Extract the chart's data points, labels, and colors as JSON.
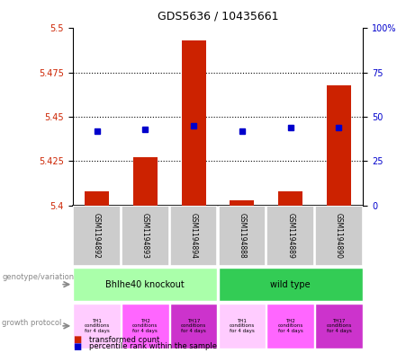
{
  "title": "GDS5636 / 10435661",
  "samples": [
    "GSM1194892",
    "GSM1194893",
    "GSM1194894",
    "GSM1194888",
    "GSM1194889",
    "GSM1194890"
  ],
  "red_values": [
    5.408,
    5.427,
    5.493,
    5.403,
    5.408,
    5.468
  ],
  "blue_values": [
    5.442,
    5.443,
    5.445,
    5.442,
    5.444,
    5.444
  ],
  "ylim_left": [
    5.4,
    5.5
  ],
  "ylim_right": [
    0,
    100
  ],
  "yticks_left": [
    5.4,
    5.425,
    5.45,
    5.475,
    5.5
  ],
  "yticks_right": [
    0,
    25,
    50,
    75,
    100
  ],
  "ytick_labels_left": [
    "5.4",
    "5.425",
    "5.45",
    "5.475",
    "5.5"
  ],
  "ytick_labels_right": [
    "0",
    "25",
    "50",
    "75",
    "100%"
  ],
  "red_color": "#cc2200",
  "blue_color": "#0000cc",
  "bar_width": 0.5,
  "genotype_groups": [
    {
      "label": "Bhlhe40 knockout",
      "start": 0,
      "end": 3,
      "color": "#aaffaa"
    },
    {
      "label": "wild type",
      "start": 3,
      "end": 6,
      "color": "#33cc55"
    }
  ],
  "growth_protocols": [
    {
      "label": "TH1\nconditions\nfor 4 days",
      "color": "#ffccff"
    },
    {
      "label": "TH2\nconditions\nfor 4 days",
      "color": "#ff66ff"
    },
    {
      "label": "TH17\nconditions\nfor 4 days",
      "color": "#cc33cc"
    },
    {
      "label": "TH1\nconditions\nfor 4 days",
      "color": "#ffccff"
    },
    {
      "label": "TH2\nconditions\nfor 4 days",
      "color": "#ff66ff"
    },
    {
      "label": "TH17\nconditions\nfor 4 days",
      "color": "#cc33cc"
    }
  ],
  "legend_red_label": "transformed count",
  "legend_blue_label": "percentile rank within the sample",
  "label_genotype": "genotype/variation",
  "label_growth": "growth protocol",
  "sample_bg_color": "#cccccc",
  "bg_color": "#ffffff",
  "gridline_yticks": [
    5.425,
    5.45,
    5.475
  ]
}
